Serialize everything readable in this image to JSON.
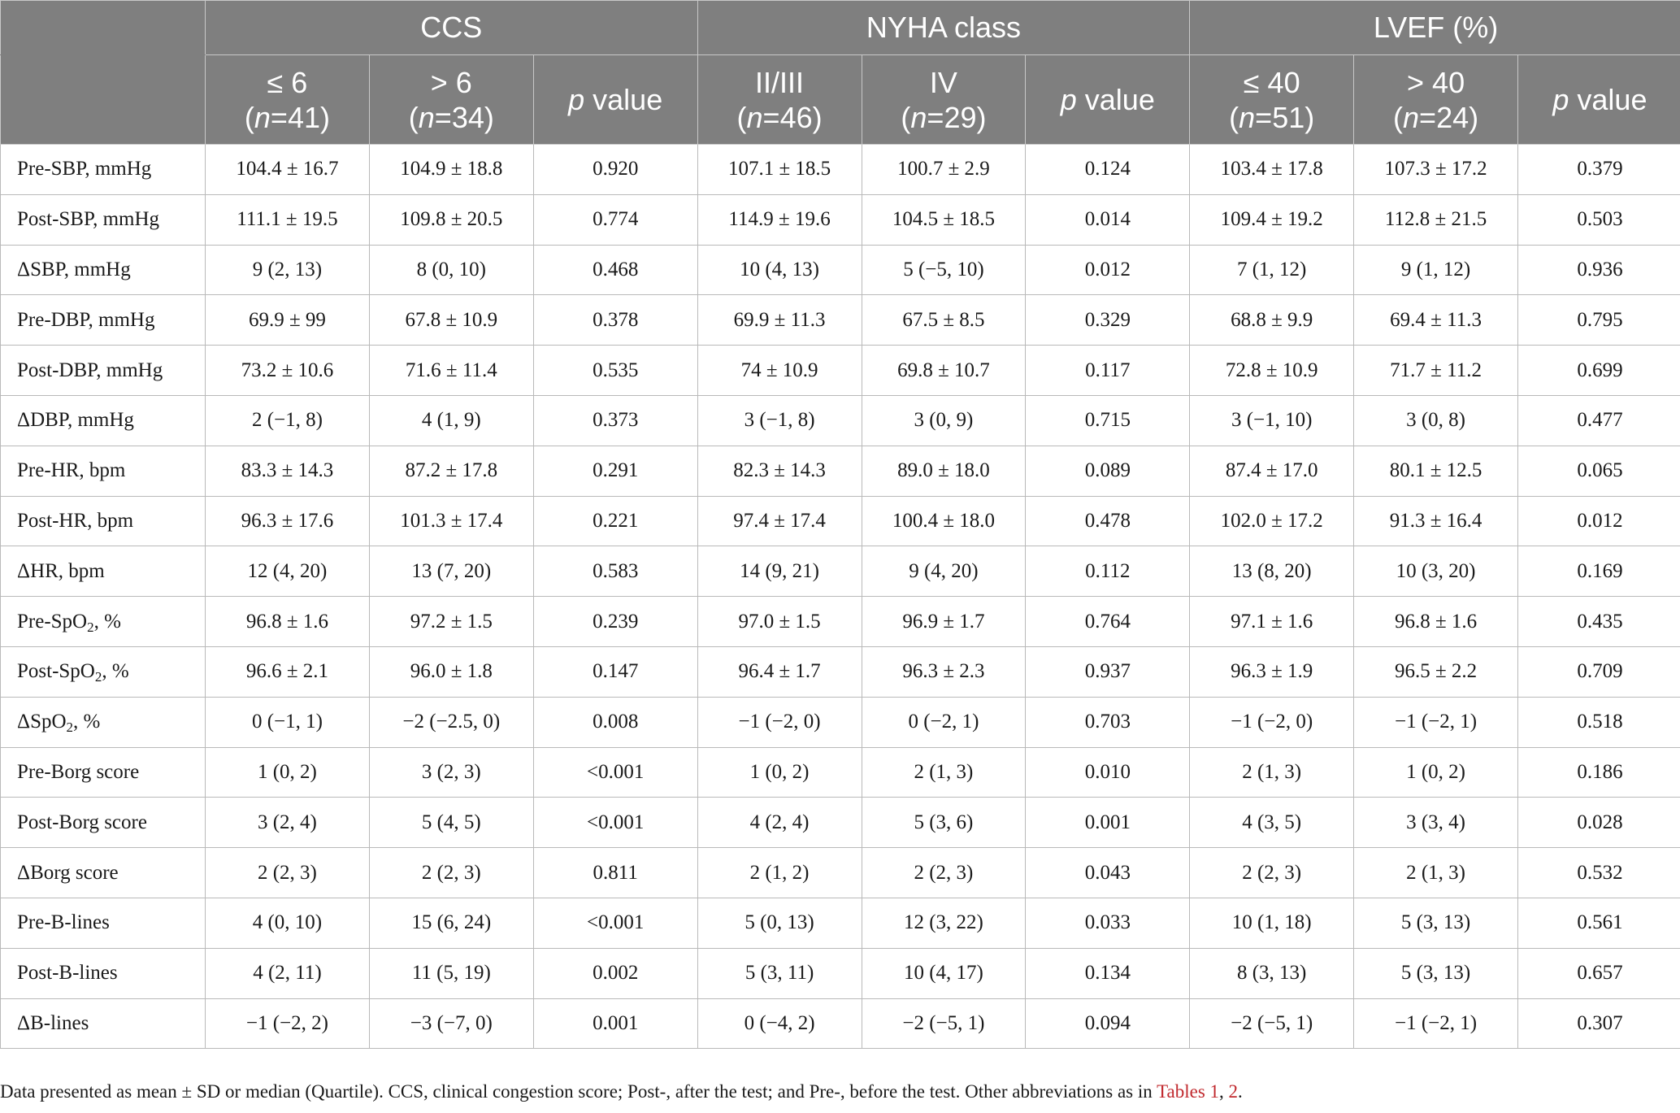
{
  "header": {
    "groups": [
      {
        "label": "CCS"
      },
      {
        "label": "NYHA class"
      },
      {
        "label": "LVEF (%)"
      }
    ],
    "subheaders": [
      {
        "line1": "≤ 6",
        "n_prefix": "(",
        "n": "n",
        "n_suffix": "=41)"
      },
      {
        "line1": "> 6",
        "n_prefix": "(",
        "n": "n",
        "n_suffix": "=34)"
      },
      {
        "p_italic": "p",
        "p_rest": " value"
      },
      {
        "line1": "II/III",
        "n_prefix": "(",
        "n": "n",
        "n_suffix": "=46)"
      },
      {
        "line1": "IV",
        "n_prefix": "(",
        "n": "n",
        "n_suffix": "=29)"
      },
      {
        "p_italic": "p",
        "p_rest": " value"
      },
      {
        "line1": "≤ 40",
        "n_prefix": "(",
        "n": "n",
        "n_suffix": "=51)"
      },
      {
        "line1": "> 40",
        "n_prefix": "(",
        "n": "n",
        "n_suffix": "=24)"
      },
      {
        "p_italic": "p",
        "p_rest": " value"
      }
    ]
  },
  "rows": [
    {
      "label": "Pre-SBP, mmHg",
      "label_sub": "",
      "label_after": "",
      "cells": [
        "104.4 ± 16.7",
        "104.9 ± 18.8",
        "0.920",
        "107.1 ± 18.5",
        "100.7 ± 2.9",
        "0.124",
        "103.4 ± 17.8",
        "107.3 ± 17.2",
        "0.379"
      ]
    },
    {
      "label": "Post-SBP, mmHg",
      "label_sub": "",
      "label_after": "",
      "cells": [
        "111.1 ± 19.5",
        "109.8 ± 20.5",
        "0.774",
        "114.9 ± 19.6",
        "104.5 ± 18.5",
        "0.014",
        "109.4 ± 19.2",
        "112.8 ± 21.5",
        "0.503"
      ]
    },
    {
      "label": "ΔSBP, mmHg",
      "label_sub": "",
      "label_after": "",
      "cells": [
        "9 (2, 13)",
        "8 (0, 10)",
        "0.468",
        "10 (4, 13)",
        "5 (−5, 10)",
        "0.012",
        "7 (1, 12)",
        "9 (1, 12)",
        "0.936"
      ]
    },
    {
      "label": "Pre-DBP, mmHg",
      "label_sub": "",
      "label_after": "",
      "cells": [
        "69.9 ± 99",
        "67.8 ± 10.9",
        "0.378",
        "69.9 ± 11.3",
        "67.5 ± 8.5",
        "0.329",
        "68.8 ± 9.9",
        "69.4 ± 11.3",
        "0.795"
      ]
    },
    {
      "label": "Post-DBP, mmHg",
      "label_sub": "",
      "label_after": "",
      "cells": [
        "73.2 ± 10.6",
        "71.6 ± 11.4",
        "0.535",
        "74 ± 10.9",
        "69.8 ± 10.7",
        "0.117",
        "72.8 ± 10.9",
        "71.7 ± 11.2",
        "0.699"
      ]
    },
    {
      "label": "ΔDBP, mmHg",
      "label_sub": "",
      "label_after": "",
      "cells": [
        "2 (−1, 8)",
        "4 (1, 9)",
        "0.373",
        "3 (−1, 8)",
        "3 (0, 9)",
        "0.715",
        "3 (−1, 10)",
        "3 (0, 8)",
        "0.477"
      ]
    },
    {
      "label": "Pre-HR, bpm",
      "label_sub": "",
      "label_after": "",
      "cells": [
        "83.3 ± 14.3",
        "87.2 ± 17.8",
        "0.291",
        "82.3 ± 14.3",
        "89.0 ± 18.0",
        "0.089",
        "87.4 ± 17.0",
        "80.1 ± 12.5",
        "0.065"
      ]
    },
    {
      "label": "Post-HR, bpm",
      "label_sub": "",
      "label_after": "",
      "cells": [
        "96.3 ± 17.6",
        "101.3 ± 17.4",
        "0.221",
        "97.4 ± 17.4",
        "100.4 ± 18.0",
        "0.478",
        "102.0 ± 17.2",
        "91.3 ± 16.4",
        "0.012"
      ]
    },
    {
      "label": "ΔHR, bpm",
      "label_sub": "",
      "label_after": "",
      "cells": [
        "12 (4, 20)",
        "13 (7, 20)",
        "0.583",
        "14 (9, 21)",
        "9 (4, 20)",
        "0.112",
        "13 (8, 20)",
        "10 (3, 20)",
        "0.169"
      ]
    },
    {
      "label": "Pre-SpO",
      "label_sub": "2",
      "label_after": ", %",
      "cells": [
        "96.8 ± 1.6",
        "97.2 ± 1.5",
        "0.239",
        "97.0 ± 1.5",
        "96.9 ± 1.7",
        "0.764",
        "97.1 ± 1.6",
        "96.8 ± 1.6",
        "0.435"
      ]
    },
    {
      "label": "Post-SpO",
      "label_sub": "2",
      "label_after": ", %",
      "cells": [
        "96.6 ± 2.1",
        "96.0 ± 1.8",
        "0.147",
        "96.4 ± 1.7",
        "96.3 ± 2.3",
        "0.937",
        "96.3 ± 1.9",
        "96.5 ± 2.2",
        "0.709"
      ]
    },
    {
      "label": "ΔSpO",
      "label_sub": "2",
      "label_after": ", %",
      "cells": [
        "0 (−1, 1)",
        "−2 (−2.5, 0)",
        "0.008",
        "−1 (−2, 0)",
        "0 (−2, 1)",
        "0.703",
        "−1 (−2, 0)",
        "−1 (−2, 1)",
        "0.518"
      ]
    },
    {
      "label": "Pre-Borg score",
      "label_sub": "",
      "label_after": "",
      "cells": [
        "1 (0, 2)",
        "3 (2, 3)",
        "<0.001",
        "1 (0, 2)",
        "2 (1, 3)",
        "0.010",
        "2 (1, 3)",
        "1 (0, 2)",
        "0.186"
      ]
    },
    {
      "label": "Post-Borg score",
      "label_sub": "",
      "label_after": "",
      "cells": [
        "3 (2, 4)",
        "5 (4, 5)",
        "<0.001",
        "4 (2, 4)",
        "5 (3, 6)",
        "0.001",
        "4 (3, 5)",
        "3 (3, 4)",
        "0.028"
      ]
    },
    {
      "label": "ΔBorg score",
      "label_sub": "",
      "label_after": "",
      "cells": [
        "2 (2, 3)",
        "2 (2, 3)",
        "0.811",
        "2 (1, 2)",
        "2 (2, 3)",
        "0.043",
        "2 (2, 3)",
        "2 (1, 3)",
        "0.532"
      ]
    },
    {
      "label": "Pre-B-lines",
      "label_sub": "",
      "label_after": "",
      "cells": [
        "4 (0, 10)",
        "15 (6, 24)",
        "<0.001",
        "5 (0, 13)",
        "12 (3, 22)",
        "0.033",
        "10 (1, 18)",
        "5 (3, 13)",
        "0.561"
      ]
    },
    {
      "label": "Post-B-lines",
      "label_sub": "",
      "label_after": "",
      "cells": [
        "4 (2, 11)",
        "11 (5, 19)",
        "0.002",
        "5 (3, 11)",
        "10 (4, 17)",
        "0.134",
        "8 (3, 13)",
        "5 (3, 13)",
        "0.657"
      ]
    },
    {
      "label": "ΔB-lines",
      "label_sub": "",
      "label_after": "",
      "cells": [
        "−1 (−2, 2)",
        "−3 (−7, 0)",
        "0.001",
        "0 (−4, 2)",
        "−2 (−5, 1)",
        "0.094",
        "−2 (−5, 1)",
        "−1 (−2, 1)",
        "0.307"
      ]
    }
  ],
  "footnote": {
    "text": "Data presented as mean ± SD or median (Quartile). CCS, clinical congestion score; Post-, after the test; and Pre-, before the test. Other abbreviations as in ",
    "ref1": "Tables 1",
    "sep": ", ",
    "ref2": "2",
    "end": "."
  },
  "colors": {
    "header_bg": "#7f7f7f",
    "header_text": "#ffffff",
    "link": "#c0282d"
  }
}
